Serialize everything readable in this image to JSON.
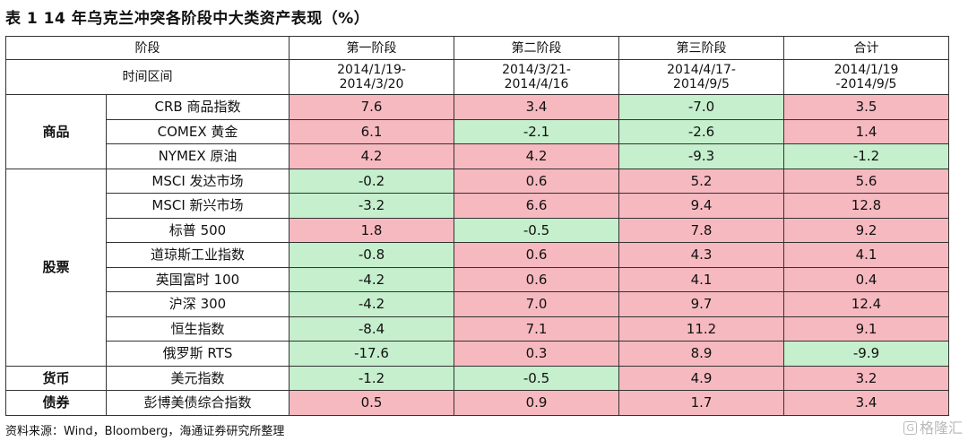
{
  "title": "表 1 14 年乌克兰冲突各阶段中大类资产表现（%）",
  "header": {
    "stage_label": "阶段",
    "time_label": "时间区间",
    "stages": [
      "第一阶段",
      "第二阶段",
      "第三阶段",
      "合计"
    ],
    "periods": [
      [
        "2014/1/19-",
        "2014/3/20"
      ],
      [
        "2014/3/21-",
        "2014/4/16"
      ],
      [
        "2014/4/17-",
        "2014/9/5"
      ],
      [
        "2014/1/19",
        "-2014/9/5"
      ]
    ]
  },
  "groups": [
    {
      "name": "商品",
      "rows": [
        {
          "name": "CRB 商品指数",
          "values": [
            "7.6",
            "3.4",
            "-7.0",
            "3.5"
          ]
        },
        {
          "name": "COMEX 黄金",
          "values": [
            "6.1",
            "-2.1",
            "-2.6",
            "1.4"
          ]
        },
        {
          "name": "NYMEX 原油",
          "values": [
            "4.2",
            "4.2",
            "-9.3",
            "-1.2"
          ]
        }
      ]
    },
    {
      "name": "股票",
      "rows": [
        {
          "name": "MSCI 发达市场",
          "values": [
            "-0.2",
            "0.6",
            "5.2",
            "5.6"
          ]
        },
        {
          "name": "MSCI 新兴市场",
          "values": [
            "-3.2",
            "6.6",
            "9.4",
            "12.8"
          ]
        },
        {
          "name": "标普 500",
          "values": [
            "1.8",
            "-0.5",
            "7.8",
            "9.2"
          ]
        },
        {
          "name": "道琼斯工业指数",
          "values": [
            "-0.8",
            "0.6",
            "4.3",
            "4.1"
          ]
        },
        {
          "name": "英国富时 100",
          "values": [
            "-4.2",
            "0.6",
            "4.1",
            "0.4"
          ]
        },
        {
          "name": "沪深 300",
          "values": [
            "-4.2",
            "7.0",
            "9.7",
            "12.4"
          ]
        },
        {
          "name": "恒生指数",
          "values": [
            "-8.4",
            "7.1",
            "11.2",
            "9.1"
          ]
        },
        {
          "name": "俄罗斯 RTS",
          "values": [
            "-17.6",
            "0.3",
            "8.9",
            "-9.9"
          ]
        }
      ]
    },
    {
      "name": "货币",
      "rows": [
        {
          "name": "美元指数",
          "values": [
            "-1.2",
            "-0.5",
            "4.9",
            "3.2"
          ]
        }
      ]
    },
    {
      "name": "债券",
      "rows": [
        {
          "name": "彭博美债综合指数",
          "values": [
            "0.5",
            "0.9",
            "1.7",
            "3.4"
          ]
        }
      ]
    }
  ],
  "colors": {
    "positive": "#f7b9c0",
    "negative": "#c5efcd"
  },
  "source": "资料来源：Wind，Bloomberg，海通证券研究所整理",
  "watermark": {
    "badge": "G",
    "text": "格隆汇"
  }
}
